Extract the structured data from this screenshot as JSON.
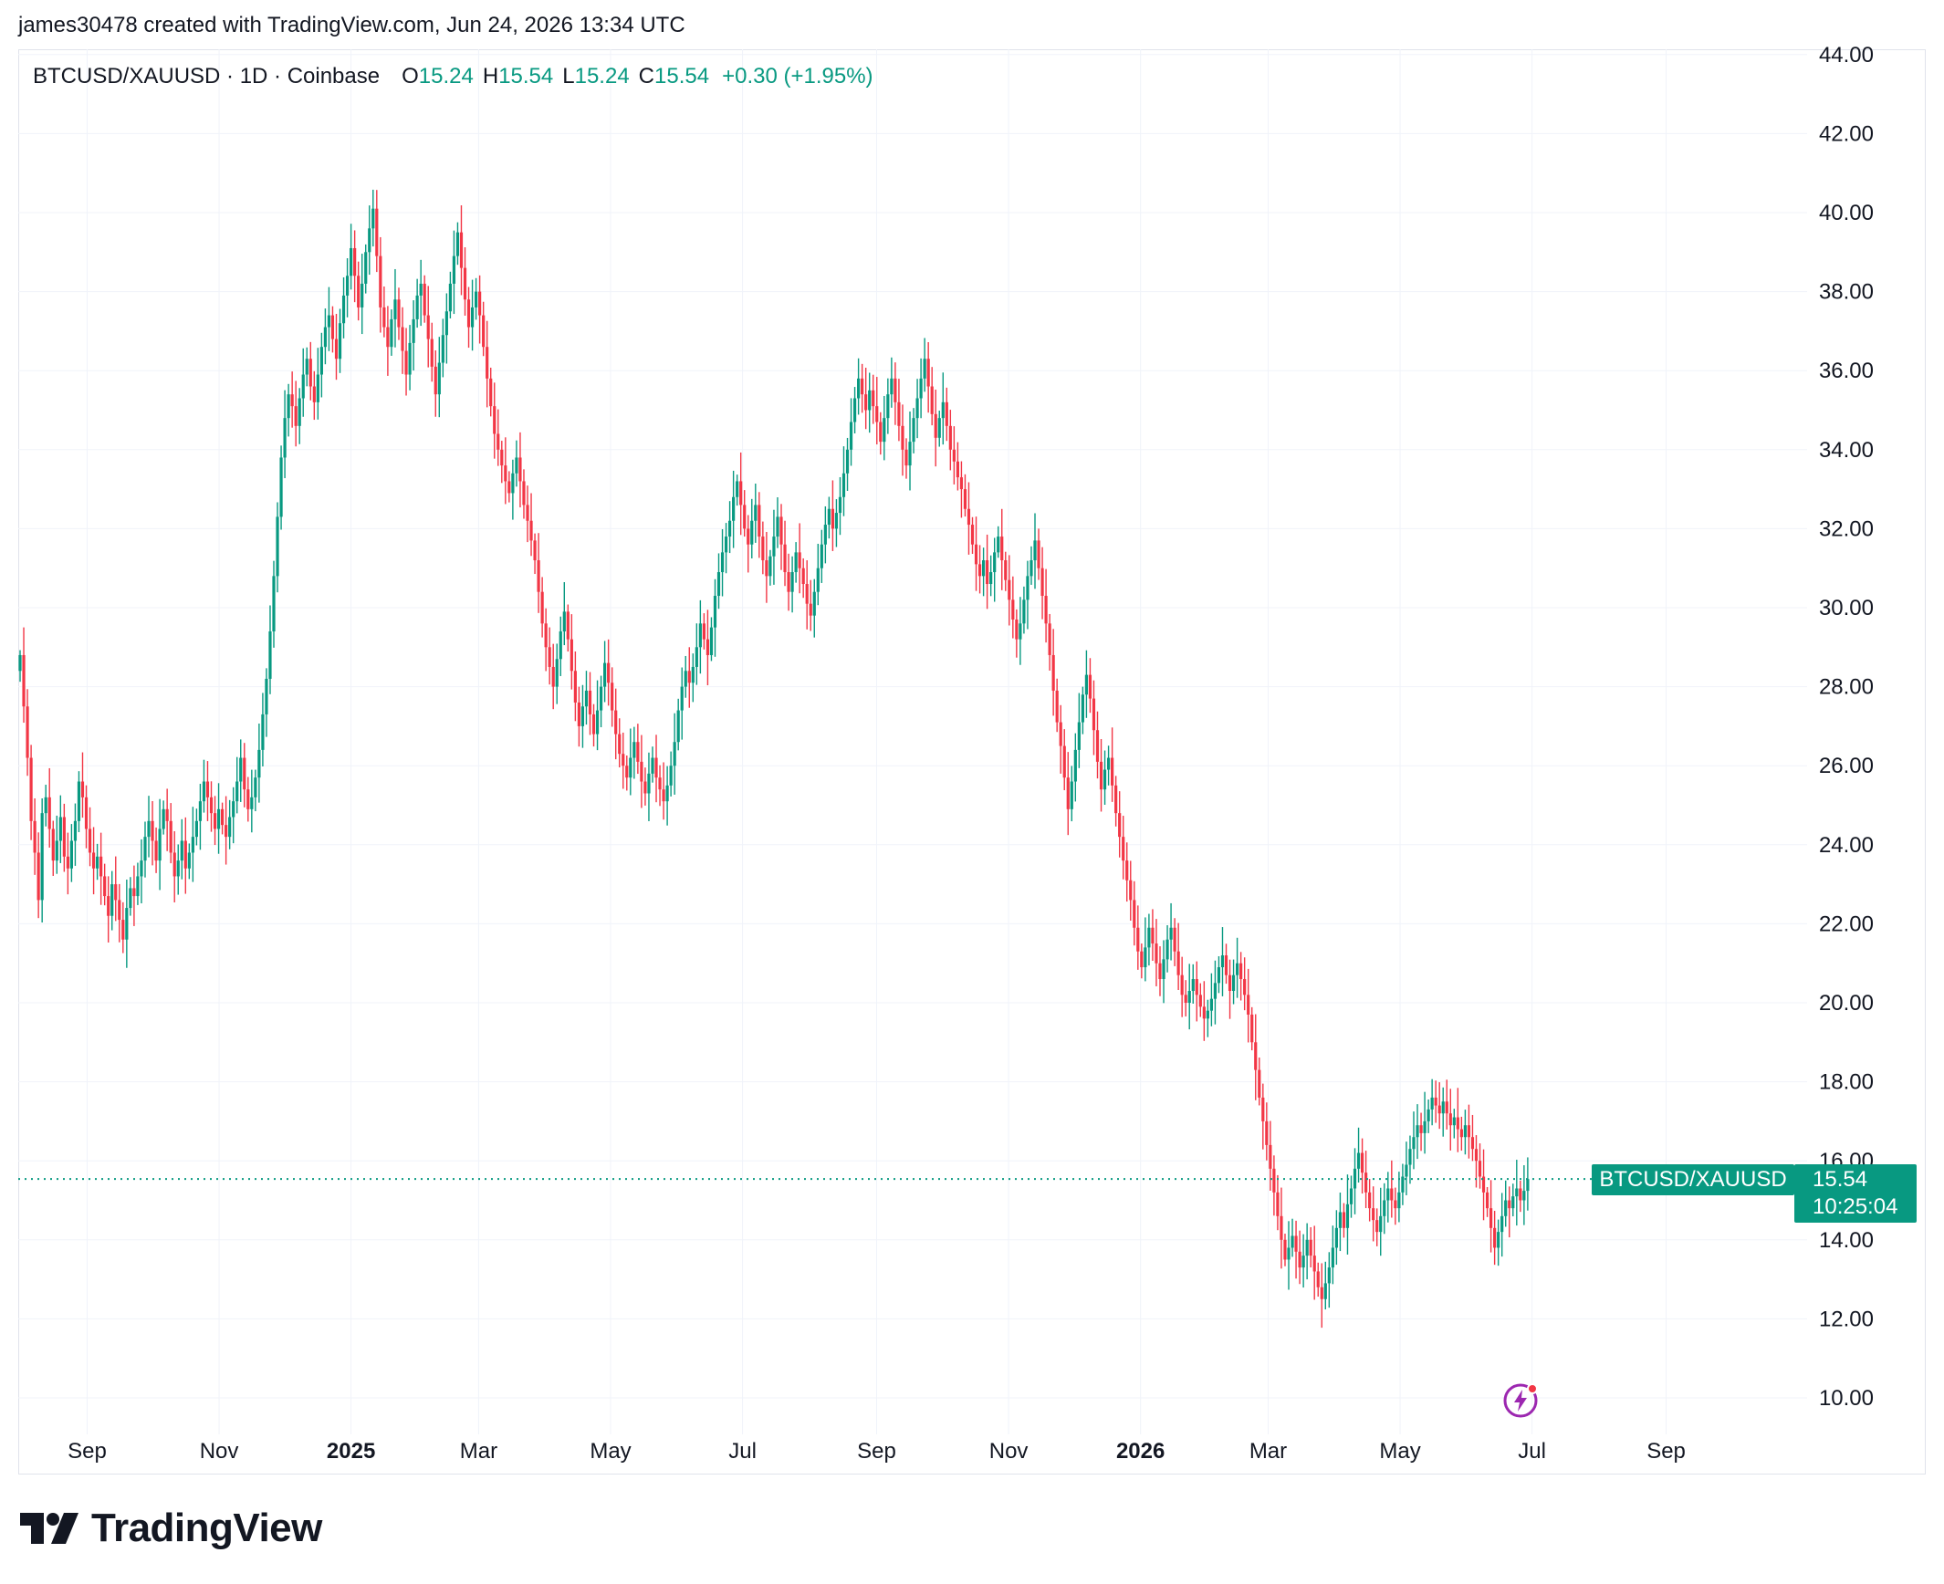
{
  "header": {
    "attribution": "james30478 created with TradingView.com, Jun 24, 2026 13:34 UTC"
  },
  "legend": {
    "symbol": "BTCUSD/XAUUSD · 1D · Coinbase",
    "open_label": "O",
    "open": "15.24",
    "high_label": "H",
    "high": "15.54",
    "low_label": "L",
    "low": "15.24",
    "close_label": "C",
    "close": "15.54",
    "change": "+0.30 (+1.95%)"
  },
  "price_scale": {
    "symbol_tag": "BTCUSD/XAUUSD",
    "last_price": "15.54",
    "countdown": "10:25:04"
  },
  "branding": {
    "logo_text": "TradingView"
  },
  "colors": {
    "up": "#089981",
    "down": "#f23645",
    "grid": "#f0f3fa",
    "axis_text": "#131722",
    "bolt": "#9c27b0"
  },
  "chart_data": {
    "type": "candlestick",
    "title": "",
    "xlabel": "",
    "ylabel": "",
    "ylim": [
      9.0,
      44.6
    ],
    "y_ticks": [
      "10.00",
      "12.00",
      "14.00",
      "16.00",
      "18.00",
      "20.00",
      "22.00",
      "24.00",
      "26.00",
      "28.00",
      "30.00",
      "32.00",
      "34.00",
      "36.00",
      "38.00",
      "40.00",
      "42.00",
      "44.00"
    ],
    "x_range": [
      "2024-08-01",
      "2026-10-10"
    ],
    "x_ticks": [
      {
        "date": "2024-09-01",
        "label": "Sep",
        "bold": false
      },
      {
        "date": "2024-11-01",
        "label": "Nov",
        "bold": false
      },
      {
        "date": "2025-01-01",
        "label": "2025",
        "bold": true
      },
      {
        "date": "2025-03-01",
        "label": "Mar",
        "bold": false
      },
      {
        "date": "2025-05-01",
        "label": "May",
        "bold": false
      },
      {
        "date": "2025-07-01",
        "label": "Jul",
        "bold": false
      },
      {
        "date": "2025-09-01",
        "label": "Sep",
        "bold": false
      },
      {
        "date": "2025-11-01",
        "label": "Nov",
        "bold": false
      },
      {
        "date": "2026-01-01",
        "label": "2026",
        "bold": true
      },
      {
        "date": "2026-03-01",
        "label": "Mar",
        "bold": false
      },
      {
        "date": "2026-05-01",
        "label": "May",
        "bold": false
      },
      {
        "date": "2026-07-01",
        "label": "Jul",
        "bold": false
      },
      {
        "date": "2026-09-01",
        "label": "Sep",
        "bold": false
      }
    ],
    "last_close": 15.54,
    "series": [
      {
        "name": "BTCUSD/XAUUSD",
        "start_date": "2024-08-01",
        "close": [
          28.8,
          27.5,
          26.2,
          24.6,
          23.8,
          22.6,
          24.8,
          25.2,
          24.4,
          23.6,
          24.1,
          24.7,
          23.7,
          23.4,
          24.1,
          24.6,
          25.6,
          25.2,
          24.4,
          23.8,
          23.4,
          23.7,
          23.2,
          22.7,
          22.2,
          23.0,
          22.6,
          22.1,
          21.6,
          22.4,
          22.9,
          22.7,
          23.2,
          23.6,
          24.2,
          24.6,
          24.1,
          23.6,
          24.4,
          24.9,
          24.6,
          23.8,
          23.2,
          23.6,
          24.1,
          23.4,
          23.8,
          24.2,
          24.6,
          25.1,
          25.6,
          25.2,
          24.8,
          24.4,
          24.9,
          24.5,
          24.2,
          24.7,
          25.1,
          25.6,
          26.2,
          25.4,
          24.9,
          25.2,
          25.7,
          26.4,
          27.3,
          28.2,
          29.4,
          30.8,
          32.3,
          33.8,
          34.8,
          35.4,
          35.1,
          34.6,
          35.3,
          35.9,
          36.3,
          35.6,
          35.2,
          35.9,
          36.6,
          37.1,
          37.4,
          36.8,
          36.3,
          37.2,
          37.9,
          38.4,
          39.1,
          38.4,
          37.6,
          38.2,
          39.0,
          39.6,
          40.1,
          38.9,
          37.6,
          37.1,
          36.6,
          37.3,
          37.8,
          37.1,
          36.5,
          35.9,
          36.7,
          37.3,
          37.9,
          38.2,
          37.4,
          36.8,
          36.1,
          35.4,
          36.2,
          36.9,
          37.5,
          38.2,
          38.9,
          39.5,
          38.6,
          37.8,
          37.1,
          37.6,
          38.0,
          37.4,
          36.6,
          35.8,
          35.1,
          34.4,
          34.0,
          33.6,
          33.2,
          32.9,
          33.4,
          33.8,
          33.2,
          32.6,
          32.2,
          31.7,
          31.2,
          30.4,
          29.6,
          29.0,
          28.5,
          28.0,
          28.7,
          29.4,
          29.9,
          29.2,
          28.4,
          27.6,
          27.0,
          27.5,
          27.9,
          27.3,
          26.8,
          27.4,
          28.0,
          28.6,
          28.1,
          27.4,
          26.8,
          26.3,
          26.0,
          25.7,
          26.2,
          26.6,
          26.1,
          25.6,
          25.3,
          25.8,
          26.2,
          25.7,
          25.4,
          25.1,
          25.5,
          26.0,
          26.6,
          27.4,
          28.0,
          28.4,
          28.1,
          28.5,
          29.0,
          29.6,
          29.2,
          28.8,
          29.5,
          30.3,
          30.9,
          31.4,
          31.8,
          32.2,
          32.8,
          33.2,
          32.6,
          32.0,
          31.6,
          32.2,
          32.6,
          31.8,
          31.2,
          30.8,
          31.3,
          31.8,
          32.3,
          31.6,
          30.9,
          30.4,
          30.9,
          31.4,
          31.0,
          30.6,
          30.1,
          29.8,
          30.4,
          31.0,
          31.6,
          32.1,
          32.5,
          32.0,
          32.4,
          32.8,
          33.4,
          34.0,
          34.7,
          35.3,
          35.8,
          35.4,
          35.0,
          35.5,
          35.1,
          34.7,
          34.2,
          34.8,
          35.4,
          35.8,
          35.2,
          34.6,
          34.0,
          33.6,
          34.2,
          34.8,
          35.3,
          35.8,
          36.3,
          35.6,
          34.9,
          34.3,
          34.8,
          35.2,
          34.6,
          34.0,
          33.7,
          33.3,
          33.0,
          32.5,
          32.1,
          31.6,
          31.1,
          30.8,
          31.2,
          30.6,
          30.9,
          31.4,
          31.8,
          31.2,
          30.7,
          30.2,
          29.7,
          29.2,
          29.6,
          30.2,
          30.8,
          31.2,
          31.7,
          31.0,
          30.3,
          29.6,
          28.8,
          27.9,
          27.1,
          26.5,
          25.7,
          24.9,
          25.6,
          26.4,
          27.1,
          27.8,
          28.3,
          27.7,
          26.9,
          26.1,
          25.4,
          25.9,
          26.2,
          25.5,
          24.8,
          24.2,
          23.6,
          23.1,
          22.6,
          21.9,
          21.3,
          20.9,
          21.4,
          21.9,
          21.5,
          21.0,
          20.6,
          21.1,
          21.6,
          21.9,
          21.3,
          20.7,
          20.2,
          20.0,
          20.3,
          20.6,
          20.2,
          19.9,
          19.6,
          19.8,
          20.1,
          20.5,
          20.9,
          21.2,
          20.7,
          20.3,
          20.7,
          21.0,
          20.6,
          20.2,
          19.7,
          19.0,
          18.3,
          17.6,
          17.0,
          16.4,
          15.8,
          15.2,
          14.6,
          14.0,
          13.5,
          13.8,
          14.1,
          13.7,
          13.3,
          13.6,
          14.0,
          13.6,
          13.2,
          12.8,
          12.5,
          12.9,
          13.3,
          13.8,
          14.3,
          14.7,
          14.3,
          14.9,
          15.3,
          15.8,
          16.2,
          15.7,
          15.2,
          14.8,
          14.5,
          14.2,
          14.6,
          15.0,
          15.3,
          15.0,
          14.8,
          15.2,
          15.6,
          15.9,
          16.3,
          16.6,
          16.9,
          16.7,
          17.0,
          17.3,
          17.6,
          17.4,
          17.2,
          17.5,
          17.2,
          16.9,
          17.1,
          16.8,
          16.6,
          16.9,
          16.6,
          16.3,
          16.0,
          15.6,
          15.2,
          14.8,
          14.3,
          13.8,
          14.2,
          14.6,
          15.0,
          14.8,
          15.1,
          15.3,
          15.0,
          15.24,
          15.54
        ]
      }
    ]
  }
}
